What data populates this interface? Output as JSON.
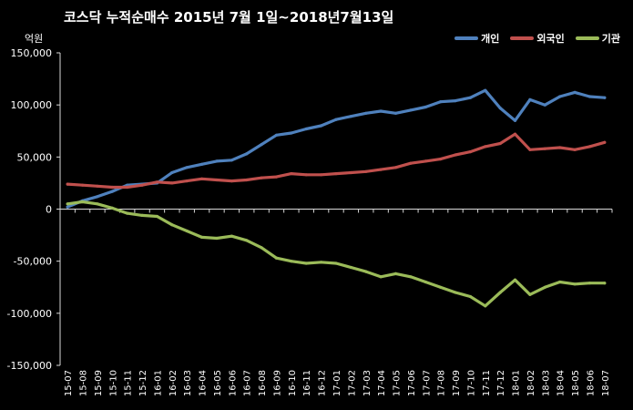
{
  "chart_data": {
    "type": "line",
    "title": "코스닥  누적순매수 2015년 7월 1일~2018년7월13일",
    "unit_label": "억원",
    "ylim": [
      -150000,
      150000
    ],
    "yticks": [
      150000,
      100000,
      50000,
      0,
      -50000,
      -100000,
      -150000
    ],
    "ytick_labels": [
      "150,000",
      "100,000",
      "50,000",
      "0",
      "-50,000",
      "-100,000",
      "-150,000"
    ],
    "x_labels": [
      "15-07",
      "15-08",
      "15-09",
      "15-10",
      "15-11",
      "15-12",
      "16-01",
      "16-02",
      "16-03",
      "16-04",
      "16-05",
      "16-06",
      "16-07",
      "16-08",
      "16-09",
      "16-10",
      "16-11",
      "16-12",
      "17-01",
      "17-02",
      "17-03",
      "17-04",
      "17-05",
      "17-06",
      "17-07",
      "17-08",
      "17-09",
      "17-10",
      "17-11",
      "17-12",
      "18-01",
      "18-02",
      "18-03",
      "18-04",
      "18-05",
      "18-06",
      "18-07"
    ],
    "legend_position": "top-right",
    "grid": false,
    "series": [
      {
        "name": "개인",
        "color": "#4f81bd",
        "values": [
          2000,
          8000,
          12000,
          17000,
          23000,
          24000,
          25000,
          35000,
          40000,
          43000,
          46000,
          47000,
          53000,
          62000,
          71000,
          73000,
          77000,
          80000,
          86000,
          89000,
          92000,
          94000,
          92000,
          95000,
          98000,
          103000,
          104000,
          107000,
          114000,
          97000,
          85000,
          105000,
          100000,
          108000,
          112000,
          108000,
          107000
        ]
      },
      {
        "name": "외국인",
        "color": "#c0504d",
        "values": [
          24000,
          23000,
          22000,
          21000,
          21000,
          23000,
          26000,
          25000,
          27000,
          29000,
          28000,
          27000,
          28000,
          30000,
          31000,
          34000,
          33000,
          33000,
          34000,
          35000,
          36000,
          38000,
          40000,
          44000,
          46000,
          48000,
          52000,
          55000,
          60000,
          63000,
          72000,
          57000,
          58000,
          59000,
          57000,
          60000,
          64000
        ]
      },
      {
        "name": "기관",
        "color": "#9bbb59",
        "values": [
          5000,
          7000,
          5000,
          1000,
          -4000,
          -6000,
          -7000,
          -15000,
          -21000,
          -27000,
          -28000,
          -26000,
          -30000,
          -37000,
          -47000,
          -50000,
          -52000,
          -51000,
          -52000,
          -56000,
          -60000,
          -65000,
          -62000,
          -65000,
          -70000,
          -75000,
          -80000,
          -84000,
          -93000,
          -80000,
          -68000,
          -82000,
          -75000,
          -70000,
          -72000,
          -71000,
          -71000
        ]
      }
    ]
  }
}
